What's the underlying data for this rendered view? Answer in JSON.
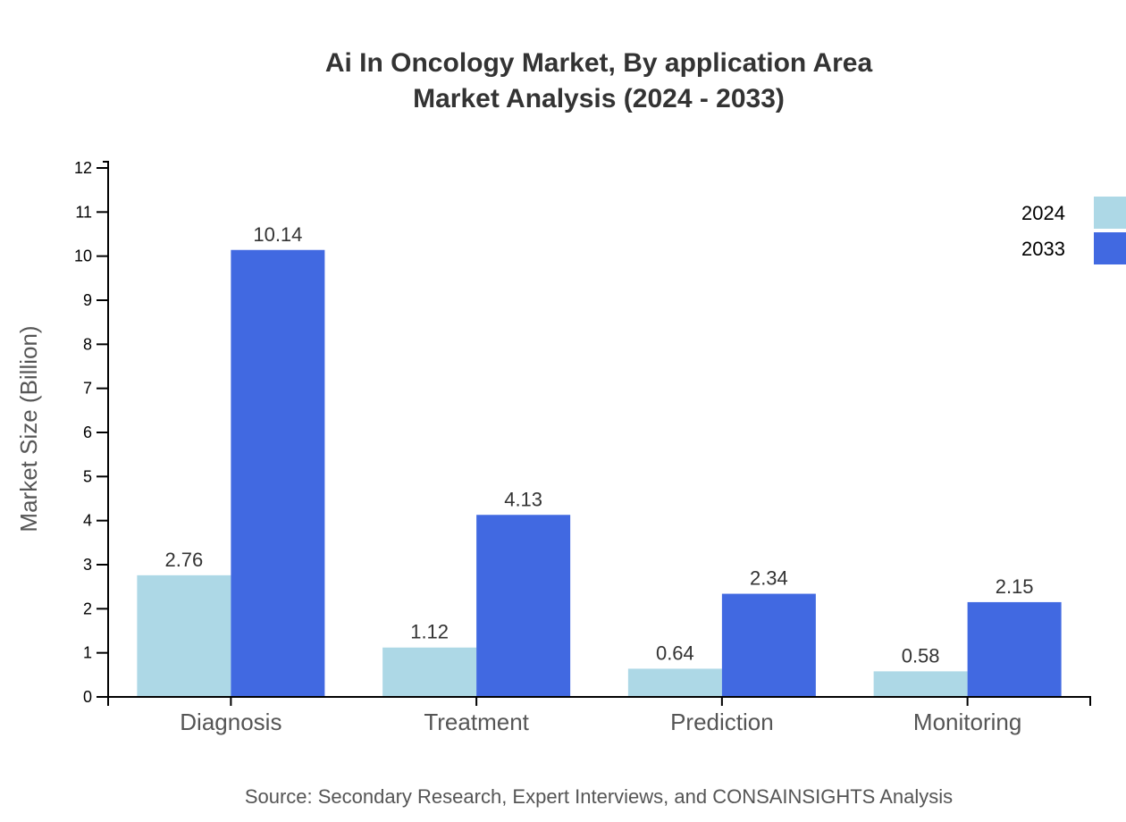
{
  "chart_data": {
    "type": "bar",
    "title": "Ai In Oncology Market, By application Area",
    "subtitle": "Market Analysis (2024 - 2033)",
    "xlabel": "",
    "ylabel": "Market Size (Billion)",
    "ylim": [
      0,
      12
    ],
    "yticks": [
      0,
      1,
      2,
      3,
      4,
      5,
      6,
      7,
      8,
      9,
      10,
      11,
      12
    ],
    "grid": false,
    "legend_position": "top-right",
    "categories": [
      "Diagnosis",
      "Treatment",
      "Prediction",
      "Monitoring"
    ],
    "series": [
      {
        "name": "2024",
        "color": "#add8e6",
        "values": [
          2.76,
          1.12,
          0.64,
          0.58
        ]
      },
      {
        "name": "2033",
        "color": "#4169e1",
        "values": [
          10.14,
          4.13,
          2.34,
          2.15
        ]
      }
    ],
    "source": "Source: Secondary Research, Expert Interviews, and CONSAINSIGHTS Analysis"
  }
}
